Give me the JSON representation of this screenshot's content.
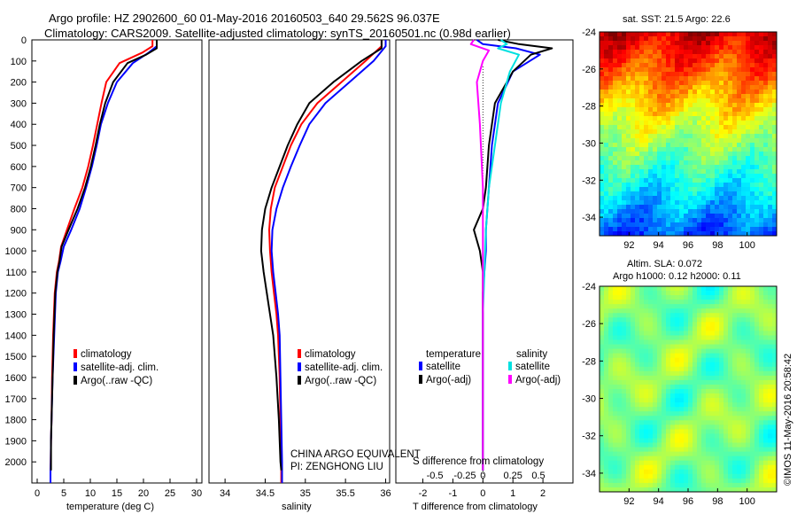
{
  "header": {
    "title_line1": "Argo profile: HZ 2902600_60 01-May-2016 20160503_640 29.562S 96.037E",
    "title_line2": "Climatology: CARS2009. Satellite-adjusted climatology: synTS_20160501.nc (0.98d earlier)"
  },
  "chart_data": [
    {
      "type": "line",
      "panel": "temperature",
      "xlabel": "temperature (deg C)",
      "ylabel": "",
      "xlim": [
        -1,
        31
      ],
      "ylim": [
        2100,
        0
      ],
      "y_reversed": true,
      "xticks": [
        0,
        5,
        10,
        15,
        20,
        25,
        30
      ],
      "yticks": [
        0,
        100,
        200,
        300,
        400,
        500,
        600,
        700,
        800,
        900,
        1000,
        1100,
        1200,
        1300,
        1400,
        1500,
        1600,
        1700,
        1800,
        1900,
        2000
      ],
      "legend_position": "lower-center",
      "series": [
        {
          "name": "climatology",
          "color": "#ff0000",
          "width": 2,
          "x": [
            21.7,
            21.7,
            19.8,
            15.5,
            13.0,
            12.1,
            11.3,
            10.5,
            9.6,
            8.5,
            7.0,
            5.6,
            4.5,
            4.1,
            3.7,
            3.3,
            3.0,
            2.8,
            2.7,
            2.6,
            2.55,
            2.5,
            2.5
          ],
          "y": [
            0,
            30,
            60,
            110,
            200,
            300,
            400,
            500,
            600,
            700,
            800,
            900,
            980,
            1050,
            1100,
            1200,
            1400,
            1600,
            1800,
            1900,
            2000,
            2050,
            2100
          ]
        },
        {
          "name": "satellite-adj. clim.",
          "color": "#0000ff",
          "width": 2,
          "x": [
            22.5,
            22.5,
            21.0,
            18.0,
            15.0,
            13.3,
            12.0,
            11.2,
            10.3,
            9.2,
            8.0,
            6.4,
            5.0,
            4.4,
            3.9,
            3.5,
            3.2,
            2.9,
            2.7,
            2.6,
            2.55,
            2.5,
            2.5
          ],
          "y": [
            0,
            30,
            60,
            110,
            200,
            300,
            400,
            500,
            600,
            700,
            800,
            900,
            980,
            1050,
            1100,
            1200,
            1400,
            1600,
            1800,
            1900,
            2000,
            2050,
            2100
          ]
        },
        {
          "name": "Argo(..raw -QC)",
          "color": "#000000",
          "width": 2,
          "x": [
            22.5,
            22.5,
            20.5,
            17.0,
            14.3,
            12.8,
            11.8,
            11.0,
            10.1,
            9.0,
            7.6,
            5.9,
            4.6,
            4.2,
            3.8,
            3.4,
            3.1,
            2.9,
            2.7,
            2.6,
            2.6,
            2.6
          ],
          "y": [
            0,
            40,
            70,
            110,
            200,
            300,
            400,
            500,
            600,
            700,
            800,
            900,
            980,
            1050,
            1100,
            1200,
            1400,
            1600,
            1800,
            1900,
            2000,
            2040
          ]
        }
      ]
    },
    {
      "type": "line",
      "panel": "salinity",
      "xlabel": "salinity",
      "ylabel": "",
      "xlim": [
        33.8,
        36.05
      ],
      "ylim": [
        2100,
        0
      ],
      "y_reversed": true,
      "xticks": [
        34,
        34.5,
        35,
        35.5,
        36
      ],
      "legend_position": "lower-center",
      "annotations": [
        "CHINA ARGO EQUIVALENT",
        "PI: ZENGHONG LIU"
      ],
      "series": [
        {
          "name": "climatology",
          "color": "#ff0000",
          "width": 2,
          "x": [
            35.95,
            35.95,
            35.75,
            35.45,
            35.15,
            34.95,
            34.82,
            34.72,
            34.62,
            34.57,
            34.55,
            34.56,
            34.58,
            34.61,
            34.64,
            34.66,
            34.68,
            34.69,
            34.7,
            34.7
          ],
          "y": [
            0,
            30,
            100,
            200,
            300,
            400,
            500,
            600,
            700,
            800,
            900,
            1000,
            1100,
            1200,
            1300,
            1400,
            1600,
            1800,
            2000,
            2100
          ]
        },
        {
          "name": "satellite-adj. clim.",
          "color": "#0000ff",
          "width": 2,
          "x": [
            36.0,
            36.0,
            35.85,
            35.55,
            35.25,
            35.05,
            34.93,
            34.82,
            34.72,
            34.64,
            34.59,
            34.58,
            34.6,
            34.63,
            34.66,
            34.68,
            34.69,
            34.7,
            34.71,
            34.71
          ],
          "y": [
            0,
            30,
            100,
            200,
            300,
            400,
            500,
            600,
            700,
            800,
            900,
            1000,
            1100,
            1200,
            1300,
            1400,
            1600,
            1800,
            2000,
            2100
          ]
        },
        {
          "name": "Argo(..raw -QC)",
          "color": "#000000",
          "width": 2,
          "x": [
            35.95,
            35.95,
            35.7,
            35.35,
            35.05,
            34.9,
            34.78,
            34.68,
            34.58,
            34.5,
            34.46,
            34.45,
            34.48,
            34.52,
            34.56,
            34.6,
            34.64,
            34.67,
            34.69,
            34.7
          ],
          "y": [
            0,
            40,
            100,
            200,
            300,
            400,
            500,
            600,
            700,
            800,
            900,
            1000,
            1100,
            1200,
            1300,
            1400,
            1600,
            1800,
            2000,
            2040
          ]
        }
      ]
    },
    {
      "type": "line",
      "panel": "differences",
      "xlabel": "T difference from climatology",
      "xlabel_top": "S difference from climatology",
      "xlim": [
        -2.9,
        3.0
      ],
      "ylim": [
        2100,
        0
      ],
      "y_reversed": true,
      "xticks": [
        -2,
        -1,
        0,
        1,
        2
      ],
      "xticks_secondary": [
        "-0.5",
        "-0.25",
        "0",
        "0.25",
        "0.5"
      ],
      "xticks_secondary_positions": [
        -1.6,
        -0.6,
        0,
        1.0,
        1.85
      ],
      "legend_groups": [
        "temperature",
        "salinity"
      ],
      "series": [
        {
          "name": "temperature satellite",
          "color": "#0000ff",
          "width": 2,
          "x": [
            -0.2,
            0.0,
            1.1,
            1.9,
            1.0,
            0.5,
            0.3,
            0.2,
            0.15,
            0.1,
            0.1,
            0.05,
            0.0,
            0.0,
            0.0,
            0.0,
            0.0,
            0.0
          ],
          "y": [
            0,
            20,
            40,
            70,
            150,
            300,
            500,
            700,
            800,
            900,
            1000,
            1100,
            1200,
            1400,
            1600,
            1800,
            2000,
            2040
          ]
        },
        {
          "name": "temperature Argo(-adj)",
          "color": "#000000",
          "width": 2,
          "x": [
            0.5,
            1.2,
            2.3,
            1.6,
            1.0,
            0.4,
            0.2,
            0.1,
            0.0,
            -0.3,
            -0.1,
            0.0,
            0.0,
            0.0,
            0.0,
            0.0,
            0.0,
            0.0
          ],
          "y": [
            0,
            20,
            40,
            70,
            150,
            300,
            500,
            700,
            800,
            900,
            1000,
            1100,
            1200,
            1400,
            1600,
            1800,
            2000,
            2040
          ]
        },
        {
          "name": "salinity satellite",
          "color": "#00e0e0",
          "width": 2,
          "x": [
            0.6,
            0.8,
            0.5,
            1.2,
            0.9,
            0.6,
            0.4,
            0.2,
            0.1,
            0.05,
            0.0,
            0.0,
            0.0,
            0.0,
            0.0
          ],
          "y": [
            0,
            20,
            40,
            70,
            150,
            300,
            500,
            700,
            900,
            1100,
            1300,
            1500,
            1700,
            1900,
            2040
          ]
        },
        {
          "name": "salinity Argo(-adj)",
          "color": "#ff00ff",
          "width": 2,
          "x": [
            -0.3,
            -0.4,
            0.2,
            0.0,
            -0.2,
            -0.1,
            0.0,
            0.0,
            0.0,
            0.0,
            0.0
          ],
          "y": [
            0,
            20,
            50,
            100,
            200,
            400,
            700,
            1000,
            1400,
            1800,
            2040
          ]
        }
      ]
    },
    {
      "type": "heatmap",
      "panel": "sst-map",
      "title": "sat. SST: 21.5  Argo: 22.6",
      "xlim": [
        90,
        102
      ],
      "ylim": [
        -35,
        -24
      ],
      "xticks": [
        92,
        94,
        96,
        98,
        100
      ],
      "yticks": [
        -24,
        -26,
        -28,
        -30,
        -32,
        -34
      ],
      "argo_location": {
        "lon": 96.037,
        "lat": -29.562
      }
    },
    {
      "type": "heatmap",
      "panel": "sla-map",
      "title": "Altim. SLA: 0.072",
      "subtitle": "Argo h1000: 0.12 h2000: 0.11",
      "xlim": [
        90,
        102
      ],
      "ylim": [
        -35,
        -24
      ],
      "xticks": [
        92,
        94,
        96,
        98,
        100
      ],
      "yticks": [
        -24,
        -26,
        -28,
        -30,
        -32,
        -34
      ]
    }
  ],
  "panel_labels": {
    "temp_legend": [
      "climatology",
      "satellite-adj. clim.",
      "Argo(..raw -QC)"
    ],
    "sal_legend": [
      "climatology",
      "satellite-adj. clim.",
      "Argo(..raw -QC)"
    ],
    "diff_legend_temp_title": "temperature",
    "diff_legend_sal_title": "salinity",
    "diff_legend_items": [
      "satellite",
      "Argo(-adj)",
      "satellite",
      "Argo(-adj)"
    ],
    "annot1": "CHINA ARGO EQUIVALENT",
    "annot2": "PI: ZENGHONG LIU",
    "watermark": "©IMOS 11-May-2016 20:58:42"
  },
  "colors": {
    "climatology": "#ff0000",
    "satellite": "#0000ff",
    "argo": "#000000",
    "sal_satellite": "#00e0e0",
    "sal_argo": "#ff00ff"
  }
}
